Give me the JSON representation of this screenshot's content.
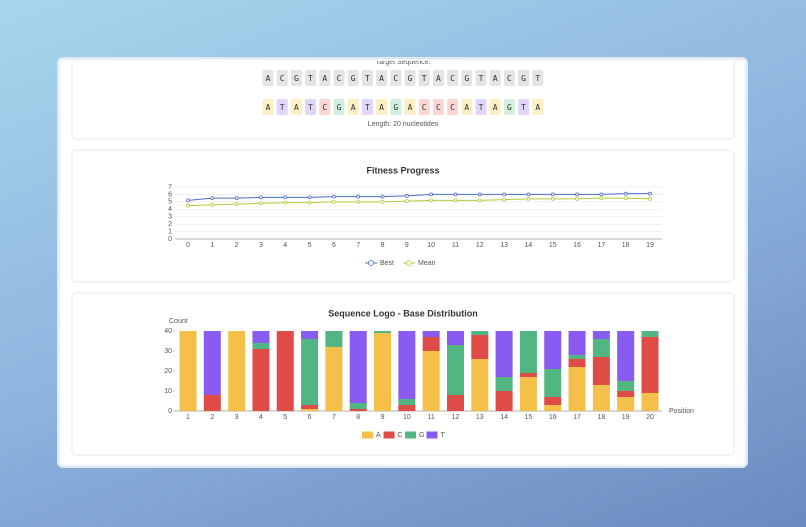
{
  "target": {
    "label": "Target Sequence:",
    "color": "#e4e4e6",
    "bases": [
      "A",
      "C",
      "G",
      "T",
      "A",
      "C",
      "G",
      "T",
      "A",
      "C",
      "G",
      "T",
      "A",
      "C",
      "G",
      "T",
      "A",
      "C",
      "G",
      "T"
    ]
  },
  "evolved": {
    "bases": [
      "A",
      "T",
      "A",
      "T",
      "C",
      "G",
      "A",
      "T",
      "A",
      "G",
      "A",
      "C",
      "C",
      "C",
      "A",
      "T",
      "A",
      "G",
      "T",
      "A"
    ]
  },
  "length_label": "Length: 20 nucleotides",
  "base_colors": {
    "A": "#fcefc4",
    "C": "#fad6d4",
    "G": "#d3f0df",
    "T": "#e0d6fa"
  },
  "chart_data": [
    {
      "type": "line",
      "title": "Fitness Progress",
      "x": [
        0,
        1,
        2,
        3,
        4,
        5,
        6,
        7,
        8,
        9,
        10,
        11,
        12,
        13,
        14,
        15,
        16,
        17,
        18,
        19
      ],
      "xlim": [
        0,
        19
      ],
      "ylim": [
        0,
        7
      ],
      "yticks": [
        0,
        1,
        2,
        3,
        4,
        5,
        6,
        7
      ],
      "grid": true,
      "legend": "bottom",
      "series": [
        {
          "name": "Best",
          "color": "#4a6fc9",
          "values": [
            5.2,
            5.5,
            5.5,
            5.6,
            5.6,
            5.6,
            5.7,
            5.7,
            5.7,
            5.8,
            6.0,
            6.0,
            6.0,
            6.0,
            6.0,
            6.0,
            6.0,
            6.0,
            6.1,
            6.1
          ]
        },
        {
          "name": "Mean",
          "color": "#b3cc3a",
          "values": [
            4.5,
            4.6,
            4.7,
            4.8,
            4.9,
            4.9,
            5.0,
            5.0,
            5.0,
            5.1,
            5.2,
            5.2,
            5.2,
            5.3,
            5.4,
            5.4,
            5.4,
            5.5,
            5.5,
            5.4
          ]
        }
      ]
    },
    {
      "type": "bar",
      "stacked": true,
      "title": "Sequence Logo - Base Distribution",
      "ylabel": "Count",
      "xlabel": "Position",
      "categories": [
        1,
        2,
        3,
        4,
        5,
        6,
        7,
        8,
        9,
        10,
        11,
        12,
        13,
        14,
        15,
        16,
        17,
        18,
        19,
        20
      ],
      "ylim": [
        0,
        40
      ],
      "yticks": [
        0,
        10,
        20,
        30,
        40
      ],
      "grid": false,
      "legend": "bottom",
      "series": [
        {
          "name": "A",
          "color": "#f4c04a",
          "values": [
            40,
            0,
            40,
            0,
            0,
            1,
            32,
            0,
            39,
            0,
            30,
            0,
            26,
            0,
            17,
            3,
            22,
            13,
            7,
            9
          ]
        },
        {
          "name": "C",
          "color": "#df4b47",
          "values": [
            0,
            8,
            0,
            31,
            40,
            2,
            0,
            1,
            0,
            3,
            7,
            8,
            12,
            10,
            2,
            4,
            4,
            14,
            3,
            28
          ]
        },
        {
          "name": "G",
          "color": "#52b683",
          "values": [
            0,
            0,
            0,
            3,
            0,
            33,
            8,
            3,
            1,
            3,
            0,
            25,
            2,
            7,
            21,
            14,
            2,
            9,
            5,
            3
          ]
        },
        {
          "name": "T",
          "color": "#8a5bf0",
          "values": [
            0,
            32,
            0,
            6,
            0,
            4,
            0,
            36,
            0,
            34,
            3,
            7,
            0,
            23,
            0,
            19,
            12,
            4,
            25,
            0
          ]
        }
      ]
    }
  ]
}
